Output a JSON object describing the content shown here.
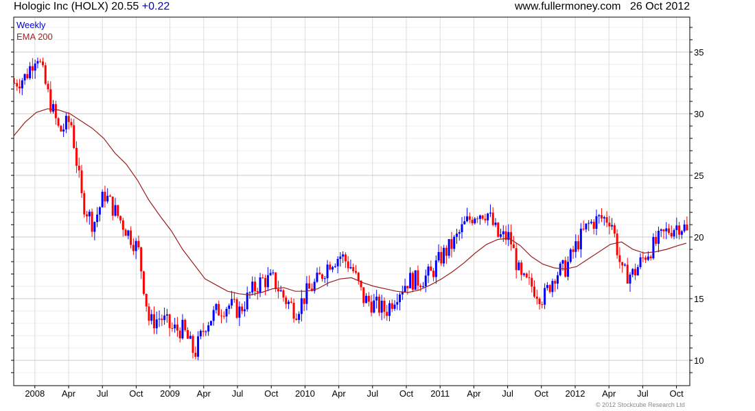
{
  "header": {
    "title": "Hologic Inc (HOLX) 20.55",
    "change": "+0.22",
    "site": "www.fullermoney.com",
    "date": "26 Oct 2012"
  },
  "footer": {
    "copyright": "© 2012 Stockcube Research Ltd"
  },
  "colors": {
    "up": "#0000ff",
    "down": "#ff0000",
    "ema": "#9b1c1c",
    "grid": "#dddddd"
  },
  "chart_data": {
    "type": "candlestick",
    "title": "Hologic Inc (HOLX)",
    "legend": [
      {
        "label": "Weekly",
        "color": "#0000cc"
      },
      {
        "label": "EMA 200",
        "color": "#a02020"
      }
    ],
    "legend_placement": "top-left",
    "ylim": [
      8,
      38
    ],
    "yticks": [
      10,
      15,
      20,
      25,
      30,
      35
    ],
    "xticks": [
      "2008",
      "Apr",
      "Jul",
      "Oct",
      "2009",
      "Apr",
      "Jul",
      "Oct",
      "2010",
      "Apr",
      "Jul",
      "Oct",
      "2011",
      "Apr",
      "Jul",
      "Oct",
      "2012",
      "Apr",
      "Jul",
      "Oct"
    ],
    "xtick_month_index": [
      2,
      5,
      8,
      11,
      14,
      17,
      20,
      23,
      26,
      29,
      32,
      35,
      38,
      41,
      44,
      47,
      50,
      53,
      56,
      59
    ],
    "months_note": "month index 0 = Nov 2007",
    "monthly_close": [
      32.5,
      33,
      35,
      31.5,
      28.5,
      29.5,
      23,
      21,
      23.5,
      22,
      20.5,
      19,
      13,
      13.5,
      12.5,
      12.5,
      10.5,
      13,
      14,
      14.5,
      14,
      15.5,
      16.5,
      16.5,
      15,
      14,
      15.5,
      16.5,
      18,
      18.5,
      17.5,
      15,
      14.5,
      14,
      15.5,
      16.5,
      16.5,
      17,
      18.5,
      19.5,
      21,
      22,
      22,
      20,
      20,
      16.5,
      16,
      15,
      17,
      17.5,
      19.5,
      21,
      21.5,
      21.5,
      17,
      17,
      18.5,
      19.5,
      20.5,
      21,
      20.55
    ],
    "ema200": [
      28.2,
      29.3,
      30.1,
      30.4,
      30.3,
      30,
      29.4,
      28.8,
      28,
      26.8,
      25.9,
      24.6,
      23,
      21.7,
      20.5,
      19,
      17.8,
      16.6,
      16.1,
      15.6,
      15.4,
      15.3,
      15.5,
      15.8,
      15.9,
      15.6,
      15.6,
      15.8,
      16.3,
      16.6,
      16.7,
      16.3,
      16,
      15.8,
      15.6,
      15.5,
      15.7,
      16.1,
      16.6,
      17.2,
      17.9,
      18.7,
      19.4,
      19.8,
      19.9,
      19.3,
      18.4,
      17.8,
      17.5,
      17.4,
      17.6,
      18.2,
      18.8,
      19.4,
      19.6,
      19,
      18.7,
      18.8,
      19,
      19.3,
      19.5
    ],
    "last_close": 20.55
  }
}
